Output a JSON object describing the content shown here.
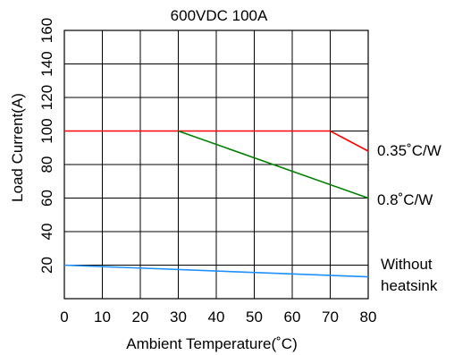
{
  "chart_data": {
    "type": "line",
    "title": "600VDC 100A",
    "xlabel": "Ambient Temperature(˚C)",
    "ylabel": "Load Current(A)",
    "xlim": [
      0,
      80
    ],
    "ylim": [
      0,
      160
    ],
    "x_ticks": [
      "0",
      "10",
      "20",
      "30",
      "40",
      "50",
      "60",
      "70",
      "80"
    ],
    "y_ticks": [
      "20",
      "40",
      "60",
      "80",
      "100",
      "120",
      "140",
      "160"
    ],
    "grid": true,
    "series": [
      {
        "name": "0.35˚C/W",
        "color": "#ff0000",
        "x": [
          0,
          70,
          80
        ],
        "y": [
          100,
          100,
          88
        ]
      },
      {
        "name": "0.8˚C/W",
        "color": "#008000",
        "x": [
          30,
          80
        ],
        "y": [
          100,
          60
        ]
      },
      {
        "name": "Without heatsink",
        "name_lines": [
          "Without",
          "heatsink"
        ],
        "color": "#1e90ff",
        "x": [
          0,
          80
        ],
        "y": [
          20,
          13
        ]
      }
    ]
  }
}
